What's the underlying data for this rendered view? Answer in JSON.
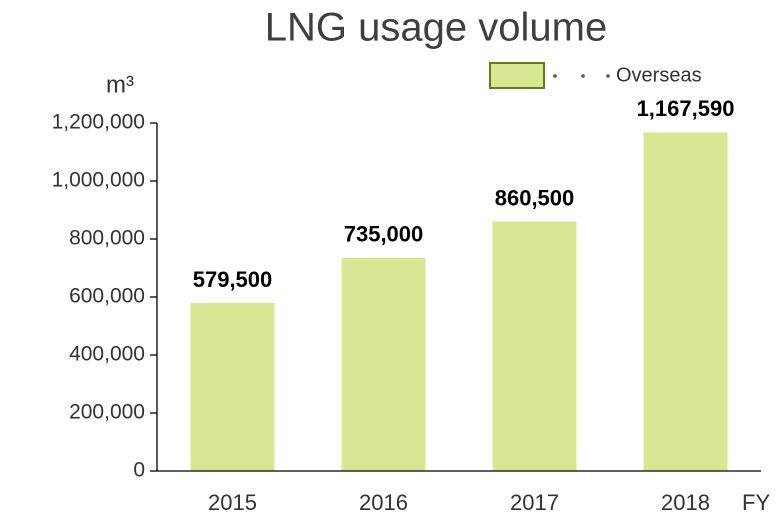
{
  "chart_data": {
    "type": "bar",
    "title": "LNG usage volume",
    "y_label": "m³",
    "x_label": "FY",
    "categories": [
      "2015",
      "2016",
      "2017",
      "2018"
    ],
    "series": [
      {
        "name": "Overseas",
        "color": "#d7e793",
        "values": [
          579500,
          735000,
          860500,
          1167590
        ],
        "value_labels": [
          "579,500",
          "735,000",
          "860,500",
          "1,167,590"
        ]
      }
    ],
    "ylim": [
      0,
      1200000
    ],
    "yticks": [
      0,
      {
        "value": 200000,
        "label": "200,000"
      },
      {
        "value": 400000,
        "label": "400,000"
      },
      {
        "value": 600000,
        "label": "600,000"
      },
      {
        "value": 800000,
        "label": "800,000"
      },
      {
        "value": 1000000,
        "label": "1,000,000"
      },
      {
        "value": 1200000,
        "label": "1,200,000"
      }
    ],
    "legend": "top-right"
  }
}
